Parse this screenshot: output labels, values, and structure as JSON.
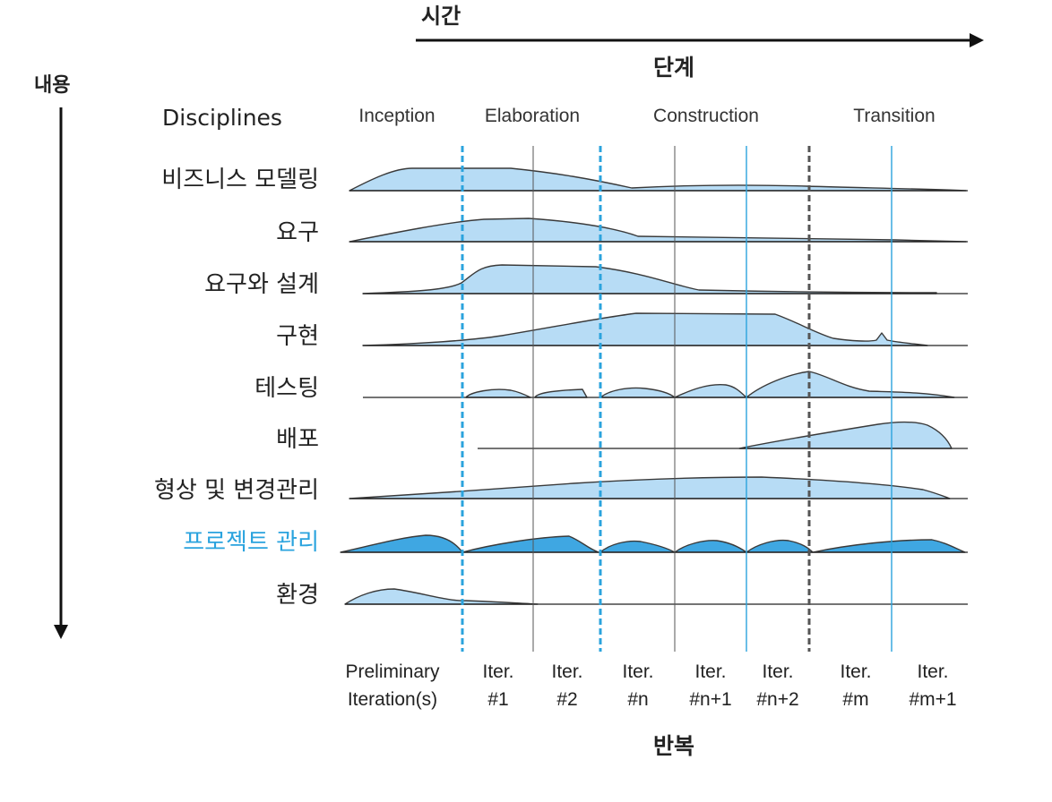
{
  "time_label": "시간",
  "phase_heading": "단계",
  "content_label": "내용",
  "disciplines_heading": "Disciplines",
  "iteration_heading": "반복",
  "phases": [
    "Inception",
    "Elaboration",
    "Construction",
    "Transition"
  ],
  "disciplines": [
    {
      "label": "비즈니스 모델링",
      "highlight": false
    },
    {
      "label": "요구",
      "highlight": false
    },
    {
      "label": "요구와 설계",
      "highlight": false
    },
    {
      "label": "구현",
      "highlight": false
    },
    {
      "label": "테스팅",
      "highlight": false
    },
    {
      "label": "배포",
      "highlight": false
    },
    {
      "label": "형상 및 변경관리",
      "highlight": false
    },
    {
      "label": "프로젝트 관리",
      "highlight": true
    },
    {
      "label": "환경",
      "highlight": false
    }
  ],
  "iterations": [
    {
      "line1": "Preliminary",
      "line2": "Iteration(s)"
    },
    {
      "line1": "Iter.",
      "line2": "#1"
    },
    {
      "line1": "Iter.",
      "line2": "#2"
    },
    {
      "line1": "Iter.",
      "line2": "#n"
    },
    {
      "line1": "Iter.",
      "line2": "#n+1"
    },
    {
      "line1": "Iter.",
      "line2": "#n+2"
    },
    {
      "line1": "Iter.",
      "line2": "#m"
    },
    {
      "line1": "Iter.",
      "line2": "#m+1"
    }
  ],
  "colors": {
    "area": "#b7dcf5",
    "area_highlight": "#3fa7e2",
    "accent": "#2aa3de"
  }
}
